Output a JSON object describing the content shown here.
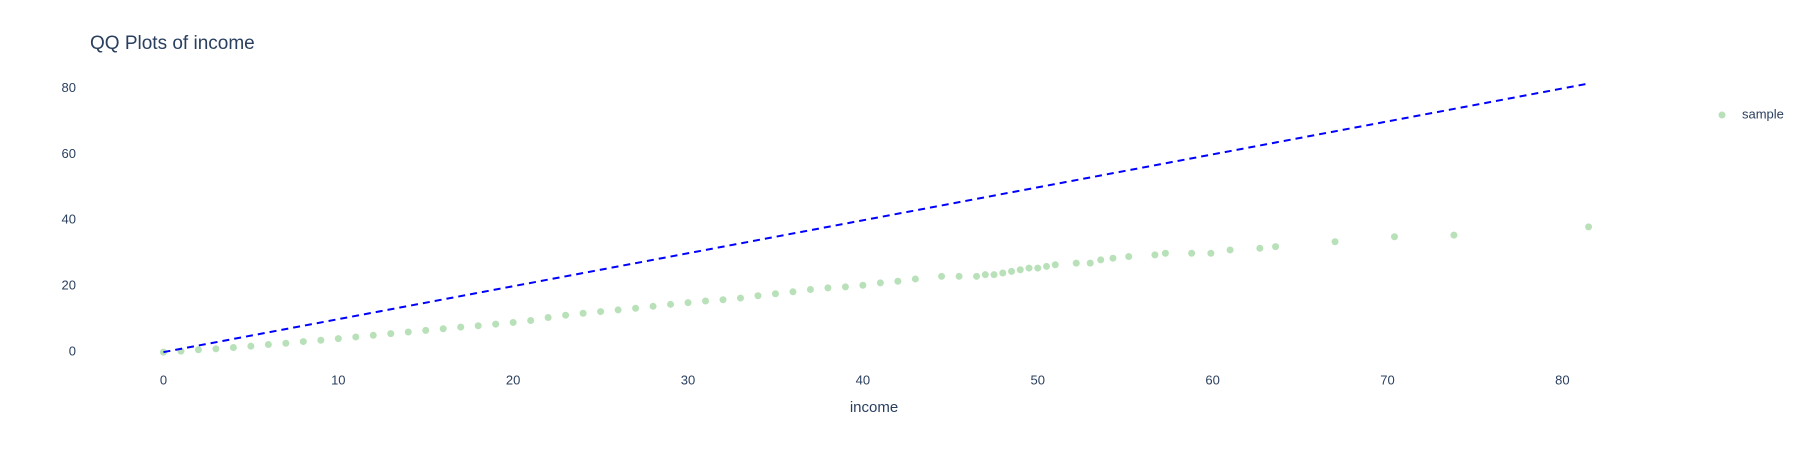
{
  "chart_data": {
    "type": "scatter",
    "title": "QQ Plots of income",
    "x_label": "income",
    "xlim": [
      -4.2,
      87.3
    ],
    "ylim": [
      -3,
      85
    ],
    "xticks": [
      0,
      10,
      20,
      30,
      40,
      50,
      60,
      70,
      80
    ],
    "yticks": [
      0,
      20,
      40,
      60,
      80
    ],
    "grid": false,
    "legend_position": "top-right",
    "series": [
      {
        "name": "sample",
        "color": "#7fc97f",
        "x": [
          0,
          1,
          2,
          3,
          4,
          5,
          6,
          7,
          8,
          9,
          10,
          11,
          12,
          13,
          14,
          15,
          16,
          17,
          18,
          19,
          20,
          21,
          22,
          23,
          24,
          25,
          26,
          27,
          28,
          29,
          30,
          31,
          32,
          33,
          34,
          35,
          36,
          37,
          38,
          39,
          40,
          41,
          42,
          43,
          44.5,
          45.5,
          46.5,
          47,
          47.5,
          48,
          48.5,
          49,
          49.5,
          50,
          50.5,
          51,
          52.2,
          53,
          53.6,
          54.3,
          55.2,
          56.7,
          57.3,
          58.8,
          59.9,
          61,
          62.7,
          63.6,
          67,
          70.4,
          73.8,
          81.5
        ],
        "values": [
          0,
          0.3,
          0.7,
          1,
          1.4,
          1.8,
          2.3,
          2.7,
          3.2,
          3.6,
          4.1,
          4.6,
          5.1,
          5.6,
          6.1,
          6.6,
          7.1,
          7.6,
          8,
          8.5,
          9,
          9.6,
          10.5,
          11.2,
          11.8,
          12.3,
          12.8,
          13.3,
          13.9,
          14.5,
          15,
          15.5,
          15.9,
          16.4,
          17.1,
          17.7,
          18.3,
          19,
          19.5,
          19.8,
          20.3,
          21,
          21.5,
          22.2,
          23,
          23,
          23,
          23.5,
          23.5,
          24,
          24.5,
          25,
          25.5,
          25.5,
          26,
          26.5,
          27,
          27,
          28,
          28.5,
          29,
          29.5,
          30,
          30,
          30,
          31,
          31.5,
          32,
          33.5,
          35,
          35.5,
          38
        ]
      }
    ],
    "reference_line": {
      "color": "blue",
      "x": [
        0,
        81.5
      ],
      "values": [
        0,
        81.5
      ]
    }
  }
}
